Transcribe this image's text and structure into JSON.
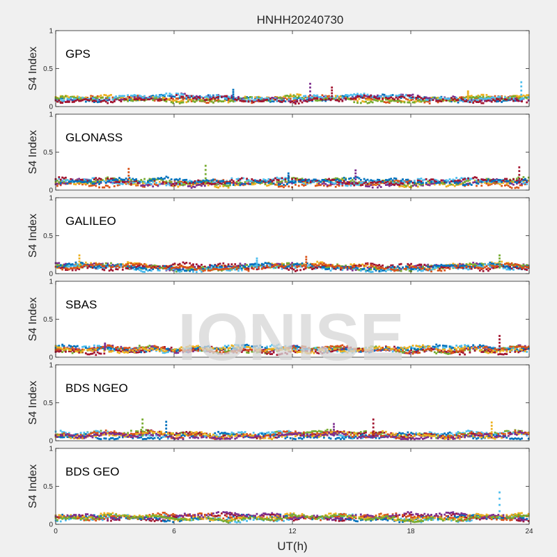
{
  "chart_data": {
    "type": "scatter",
    "title": "HNHH20240730",
    "xlabel": "UT(h)",
    "ylabel": "S4 Index",
    "xlim": [
      0,
      24
    ],
    "ylim": [
      0,
      1
    ],
    "x_ticks": [
      "0",
      "6",
      "12",
      "18",
      "24"
    ],
    "y_ticks": [
      "0",
      "0.5",
      "1"
    ],
    "watermark": "IONISE",
    "series_colors": [
      "#0072BD",
      "#D95319",
      "#EDB120",
      "#7E2F8E",
      "#77AC30",
      "#4DBEEE",
      "#A2142F"
    ],
    "panels": [
      {
        "name": "GPS",
        "baseline": 0.1,
        "spikes": [
          {
            "x": 9.0,
            "y": 0.22
          },
          {
            "x": 12.9,
            "y": 0.3
          },
          {
            "x": 14.0,
            "y": 0.25
          },
          {
            "x": 20.9,
            "y": 0.2
          },
          {
            "x": 23.6,
            "y": 0.32
          }
        ]
      },
      {
        "name": "GLONASS",
        "baseline": 0.1,
        "spikes": [
          {
            "x": 3.7,
            "y": 0.28
          },
          {
            "x": 7.6,
            "y": 0.32
          },
          {
            "x": 11.8,
            "y": 0.22
          },
          {
            "x": 15.2,
            "y": 0.26
          },
          {
            "x": 23.5,
            "y": 0.3
          }
        ]
      },
      {
        "name": "GALILEO",
        "baseline": 0.08,
        "spikes": [
          {
            "x": 1.2,
            "y": 0.24
          },
          {
            "x": 10.2,
            "y": 0.2
          },
          {
            "x": 12.7,
            "y": 0.22
          },
          {
            "x": 22.5,
            "y": 0.24
          }
        ]
      },
      {
        "name": "SBAS",
        "baseline": 0.1,
        "spikes": [
          {
            "x": 2.5,
            "y": 0.18
          },
          {
            "x": 22.5,
            "y": 0.28
          }
        ]
      },
      {
        "name": "BDS NGEO",
        "baseline": 0.07,
        "spikes": [
          {
            "x": 4.4,
            "y": 0.28
          },
          {
            "x": 5.6,
            "y": 0.25
          },
          {
            "x": 14.1,
            "y": 0.22
          },
          {
            "x": 16.1,
            "y": 0.28
          },
          {
            "x": 22.1,
            "y": 0.24
          }
        ]
      },
      {
        "name": "BDS GEO",
        "baseline": 0.09,
        "spikes": [
          {
            "x": 22.5,
            "y": 0.42
          }
        ]
      }
    ]
  }
}
